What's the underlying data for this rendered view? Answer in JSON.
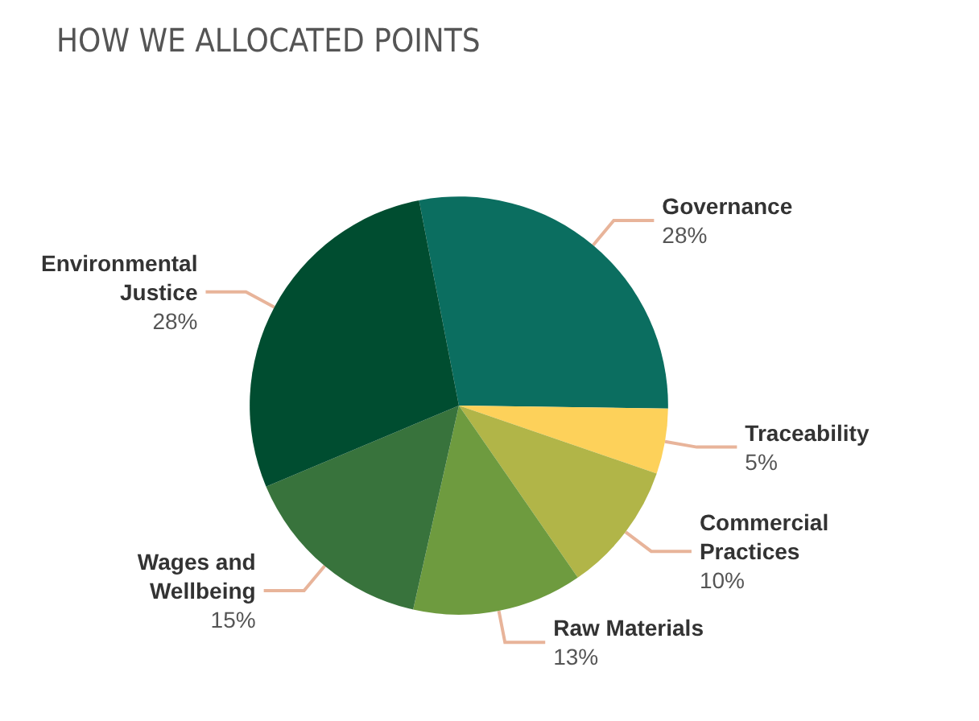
{
  "chart_data": {
    "type": "pie",
    "title": "HOW WE ALLOCATED POINTS",
    "categories": [
      "Governance",
      "Traceability",
      "Commercial Practices",
      "Raw Materials",
      "Wages and Wellbeing",
      "Environmental Justice"
    ],
    "values": [
      28,
      5,
      10,
      13,
      15,
      28
    ],
    "value_labels": [
      "28%",
      "5%",
      "10%",
      "13%",
      "15%",
      "28%"
    ],
    "colors": [
      "#0b6e60",
      "#fdd15a",
      "#b1b548",
      "#6e9b3f",
      "#38733c",
      "#004d30"
    ],
    "legend": false
  }
}
